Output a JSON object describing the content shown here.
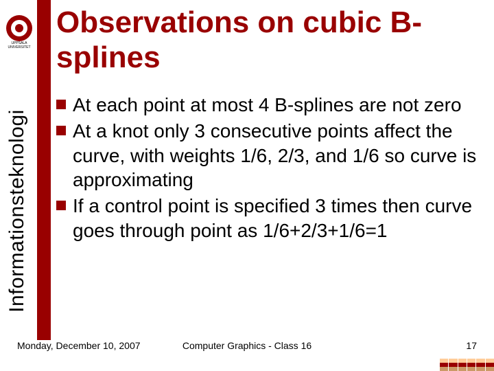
{
  "brand": {
    "vertical_label": "Informationsteknologi",
    "university_line1": "UPPSALA",
    "university_line2": "UNIVERSITET",
    "accent_color": "#990000"
  },
  "title": "Observations on cubic B-splines",
  "bullets": [
    "At each point at most 4 B-splines are not zero",
    "At a knot only 3 consecutive points affect the curve, with weights 1/6, 2/3, and 1/6 so curve is approximating",
    "If a control point is specified 3 times then curve goes through point as 1/6+2/3+1/6=1"
  ],
  "footer": {
    "date": "Monday, December 10, 2007",
    "course": "Computer Graphics - Class 16",
    "page": "17"
  },
  "corner_colors": {
    "row1": [
      "#ffcc99",
      "#ffcc99",
      "#ffcc99",
      "#ffcc99",
      "#ffcc99",
      "#ffcc99"
    ],
    "row2": [
      "#990000",
      "#990000",
      "#990000",
      "#990000",
      "#990000",
      "#990000"
    ],
    "row3": [
      "#cc9966",
      "#cc9966",
      "#cc9966",
      "#cc9966",
      "#cc9966",
      "#cc9966"
    ]
  }
}
